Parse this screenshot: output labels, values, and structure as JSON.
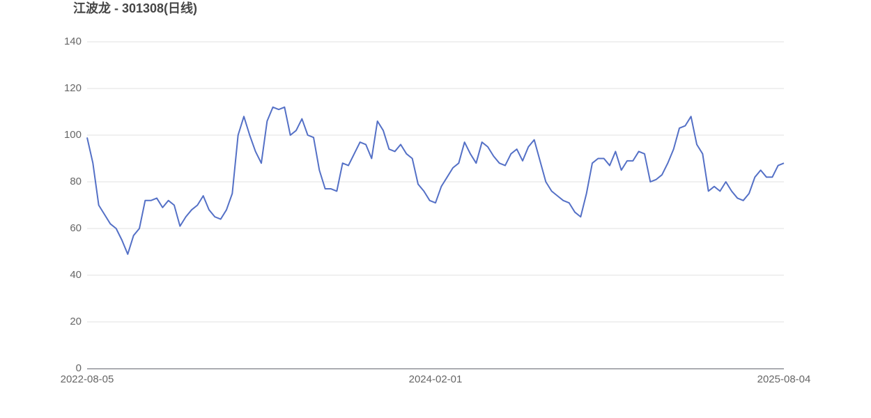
{
  "chart_data": {
    "type": "line",
    "title": "江波龙 - 301308(日线)",
    "categories": [
      "2022-08-05",
      null,
      null,
      null,
      null,
      null,
      null,
      null,
      null,
      null,
      null,
      null,
      null,
      null,
      null,
      null,
      null,
      null,
      null,
      null,
      null,
      null,
      null,
      null,
      null,
      null,
      null,
      null,
      null,
      null,
      null,
      null,
      null,
      null,
      null,
      null,
      null,
      null,
      null,
      null,
      null,
      null,
      null,
      null,
      null,
      null,
      null,
      null,
      null,
      null,
      null,
      null,
      null,
      null,
      null,
      null,
      null,
      null,
      null,
      null,
      "2024-02-01",
      null,
      null,
      null,
      null,
      null,
      null,
      null,
      null,
      null,
      null,
      null,
      null,
      null,
      null,
      null,
      null,
      null,
      null,
      null,
      null,
      null,
      null,
      null,
      null,
      null,
      null,
      null,
      null,
      null,
      null,
      null,
      null,
      null,
      null,
      null,
      null,
      null,
      null,
      null,
      null,
      null,
      null,
      null,
      null,
      null,
      null,
      null,
      null,
      null,
      null,
      null,
      null,
      null,
      null,
      null,
      null,
      null,
      null,
      null,
      "2025-08-04"
    ],
    "series": [
      {
        "name": "301308",
        "color": "#5470c6",
        "values": [
          99,
          88,
          70,
          66,
          62,
          60,
          55,
          49,
          57,
          60,
          72,
          72,
          73,
          69,
          72,
          70,
          61,
          65,
          68,
          70,
          74,
          68,
          65,
          64,
          68,
          75,
          100,
          108,
          100,
          93,
          88,
          106,
          112,
          111,
          112,
          100,
          102,
          107,
          100,
          99,
          85,
          77,
          77,
          76,
          88,
          87,
          92,
          97,
          96,
          90,
          106,
          102,
          94,
          93,
          96,
          92,
          90,
          79,
          76,
          72,
          71,
          78,
          82,
          86,
          88,
          97,
          92,
          88,
          97,
          95,
          91,
          88,
          87,
          92,
          94,
          89,
          95,
          98,
          89,
          80,
          76,
          74,
          72,
          71,
          67,
          65,
          75,
          88,
          90,
          90,
          87,
          93,
          85,
          89,
          89,
          93,
          92,
          80,
          81,
          83,
          88,
          94,
          103,
          104,
          108,
          96,
          92,
          76,
          78,
          76,
          80,
          76,
          73,
          72,
          75,
          82,
          85,
          82,
          82,
          87,
          88
        ]
      }
    ],
    "ylim": [
      0,
      140
    ],
    "yticks": [
      0,
      20,
      40,
      60,
      80,
      100,
      120,
      140
    ],
    "grid": true
  }
}
